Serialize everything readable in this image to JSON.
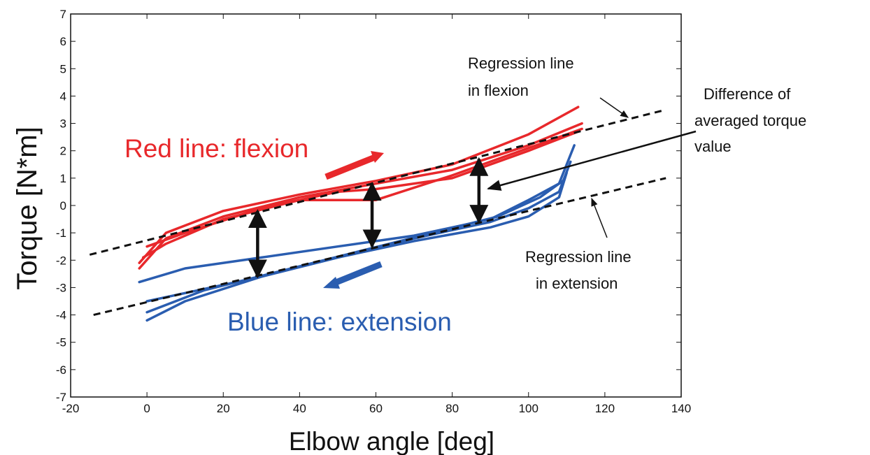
{
  "chart_data": {
    "type": "line",
    "xlabel": "Elbow angle [deg]",
    "ylabel": "Torque [N*m]",
    "xlim": [
      -20,
      140
    ],
    "ylim": [
      -7,
      7
    ],
    "xticks": [
      -20,
      0,
      20,
      40,
      60,
      80,
      100,
      120,
      140
    ],
    "yticks": [
      7,
      6,
      5,
      4,
      3,
      2,
      1,
      0,
      -1,
      -2,
      -3,
      -4,
      -5,
      -6,
      -7
    ],
    "colors": {
      "flexion": "#e8282b",
      "extension": "#2a5db0",
      "regression": "#111111"
    },
    "series": [
      {
        "group": "flexion",
        "x": [
          -2,
          5,
          20,
          40,
          60,
          80,
          100,
          113
        ],
        "y": [
          -2.1,
          -1.0,
          -0.2,
          0.4,
          0.9,
          1.5,
          2.6,
          3.6
        ]
      },
      {
        "group": "flexion",
        "x": [
          -2,
          5,
          20,
          40,
          60,
          80,
          100,
          114
        ],
        "y": [
          -2.3,
          -1.2,
          -0.4,
          0.3,
          0.8,
          1.3,
          2.2,
          3.0
        ]
      },
      {
        "group": "flexion",
        "x": [
          -1,
          5,
          20,
          40,
          55,
          60,
          80,
          100,
          114
        ],
        "y": [
          -1.9,
          -1.4,
          -0.5,
          0.2,
          0.2,
          0.2,
          1.1,
          2.1,
          2.8
        ]
      },
      {
        "group": "flexion",
        "x": [
          0,
          10,
          30,
          50,
          60,
          80,
          100,
          113
        ],
        "y": [
          -1.5,
          -1.0,
          -0.1,
          0.5,
          0.6,
          1.0,
          2.0,
          2.7
        ]
      },
      {
        "group": "extension",
        "x": [
          -2,
          10,
          30,
          50,
          70,
          90,
          100,
          108,
          112
        ],
        "y": [
          -2.8,
          -2.3,
          -1.9,
          -1.5,
          -1.1,
          -0.5,
          0.2,
          0.8,
          2.2
        ]
      },
      {
        "group": "extension",
        "x": [
          0,
          10,
          30,
          50,
          70,
          90,
          100,
          108,
          111
        ],
        "y": [
          -3.5,
          -3.2,
          -2.6,
          -1.9,
          -1.2,
          -0.6,
          -0.1,
          0.5,
          1.6
        ]
      },
      {
        "group": "extension",
        "x": [
          0,
          10,
          30,
          50,
          70,
          90,
          100,
          108,
          110
        ],
        "y": [
          -4.2,
          -3.5,
          -2.6,
          -1.9,
          -1.3,
          -0.8,
          -0.4,
          0.3,
          1.2
        ]
      },
      {
        "group": "extension",
        "x": [
          0,
          15,
          35,
          55,
          75,
          92,
          103,
          109
        ],
        "y": [
          -3.9,
          -3.1,
          -2.4,
          -1.7,
          -1.0,
          -0.4,
          0.3,
          0.9
        ]
      }
    ],
    "regression": [
      {
        "name": "Regression line in flexion",
        "x": [
          -15,
          136
        ],
        "y": [
          -1.8,
          3.5
        ]
      },
      {
        "name": "Regression line in extension",
        "x": [
          -14,
          136
        ],
        "y": [
          -4.0,
          1.0
        ]
      }
    ],
    "difference_arrows": [
      {
        "x": 29,
        "y1": -0.2,
        "y2": -2.6
      },
      {
        "x": 59,
        "y1": 0.8,
        "y2": -1.5
      },
      {
        "x": 87,
        "y1": 1.7,
        "y2": -0.6
      }
    ],
    "annotations": {
      "red_label": "Red line: flexion",
      "blue_label": "Blue line: extension",
      "reg_flexion_line1": "Regression line",
      "reg_flexion_line2": "in flexion",
      "difference_line1": "Difference of",
      "difference_line2": "averaged torque",
      "difference_line3": "value",
      "reg_extension_line1": "Regression line",
      "reg_extension_line2": "in extension"
    }
  }
}
